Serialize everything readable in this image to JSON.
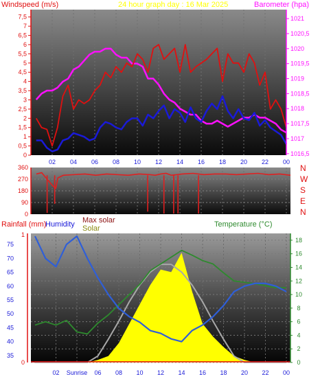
{
  "colors": {
    "wind_avg": "#1a1ad8",
    "wind_gust": "#e01010",
    "barometer": "#ff10ff",
    "wind_dir": "#e02020",
    "humidity": "#2f5fd8",
    "temperature": "#2e8a2e",
    "solar": "#ffff00",
    "max_solar": "#a8a8a8",
    "title": "#ffff00"
  },
  "chart_data": [
    {
      "type": "line",
      "title": "24 hour graph day : 16 Mar 2025",
      "left_axis_label": "Windspeed (m/s)",
      "right_axis_label": "Barometer (hpa)",
      "left_ticks": [
        "0",
        "0,5",
        "1",
        "1,5",
        "2",
        "2,5",
        "3",
        "3,5",
        "4",
        "4,5",
        "5",
        "5,5",
        "6",
        "6,5",
        "7",
        "7,5"
      ],
      "right_ticks": [
        "1016,5",
        "1017",
        "1017,5",
        "1018",
        "1018,5",
        "1019",
        "1019,5",
        "1020",
        "1020,5",
        "1021"
      ],
      "x_ticks": [
        "02",
        "04",
        "06",
        "08",
        "10",
        "12",
        "14",
        "16",
        "18",
        "20",
        "22",
        "00"
      ],
      "ylim_left": [
        0,
        7.9
      ],
      "ylim_right": [
        1016.45,
        1021.3
      ],
      "x_hours": [
        0.5,
        1,
        1.5,
        2,
        2.5,
        3,
        3.5,
        4,
        4.5,
        5,
        5.5,
        6,
        6.5,
        7,
        7.5,
        8,
        8.5,
        9,
        9.5,
        10,
        10.5,
        11,
        11.5,
        12,
        12.5,
        13,
        13.5,
        14,
        14.5,
        15,
        15.5,
        16,
        16.5,
        17,
        17.5,
        18,
        18.5,
        19,
        19.5,
        20,
        20.5,
        21,
        21.5,
        22,
        22.5,
        23,
        23.5,
        24
      ],
      "series": [
        {
          "key": "gust",
          "values": [
            2.0,
            1.5,
            1.4,
            0.5,
            1.5,
            3.2,
            3.8,
            2.5,
            3.0,
            2.8,
            3.0,
            3.5,
            3.8,
            4.5,
            4.2,
            4.8,
            4.5,
            5.0,
            4.8,
            5.5,
            5.2,
            4.5,
            5.8,
            6.0,
            5.2,
            5.5,
            5.8,
            4.5,
            6.0,
            4.5,
            4.8,
            5.0,
            5.2,
            5.5,
            5.8,
            4.0,
            5.5,
            5.0,
            5.0,
            4.5,
            5.5,
            5.0,
            3.8,
            4.5,
            2.5,
            3.0,
            2.5,
            1.5
          ]
        },
        {
          "key": "avg",
          "values": [
            0.8,
            0.8,
            0.4,
            0.2,
            0.3,
            0.8,
            0.9,
            1.2,
            1.1,
            1.0,
            0.8,
            0.9,
            1.5,
            1.8,
            1.7,
            1.5,
            1.4,
            1.8,
            2.0,
            2.0,
            1.6,
            2.2,
            2.0,
            2.4,
            2.7,
            2.0,
            2.5,
            2.3,
            1.8,
            2.6,
            2.0,
            1.8,
            2.4,
            2.8,
            2.5,
            3.2,
            2.4,
            2.0,
            2.5,
            2.0,
            1.9,
            2.3,
            1.6,
            1.9,
            1.5,
            1.3,
            1.1,
            0.6
          ]
        },
        {
          "key": "baro",
          "values": [
            1018.3,
            1018.5,
            1018.6,
            1018.6,
            1018.7,
            1018.9,
            1019.0,
            1019.3,
            1019.4,
            1019.6,
            1019.8,
            1019.9,
            1019.9,
            1020.0,
            1020.0,
            1019.8,
            1019.7,
            1019.7,
            1019.5,
            1019.5,
            1019.4,
            1019.0,
            1019.0,
            1018.8,
            1018.5,
            1018.3,
            1018.2,
            1018.0,
            1017.9,
            1017.8,
            1017.8,
            1017.6,
            1017.5,
            1017.5,
            1017.6,
            1017.5,
            1017.4,
            1017.5,
            1017.6,
            1017.7,
            1017.7,
            1017.8,
            1017.7,
            1017.7,
            1017.6,
            1017.5,
            1017.3,
            1017.2
          ]
        }
      ]
    },
    {
      "type": "line",
      "left_ticks": [
        "0",
        "90",
        "180",
        "270",
        "360"
      ],
      "right_labels": [
        "N",
        "W",
        "S",
        "E",
        "N"
      ],
      "x_ticks": [
        "02",
        "04",
        "06",
        "08",
        "10",
        "12",
        "14",
        "16",
        "18",
        "20",
        "22",
        "00"
      ],
      "ylim": [
        0,
        360
      ],
      "x_hours": [
        0.5,
        1,
        1.3,
        2,
        2.3,
        2.5,
        3,
        4,
        5,
        6,
        7,
        8,
        9,
        10,
        11,
        11.5,
        12,
        12.5,
        13,
        13.5,
        14,
        15,
        16,
        17,
        18,
        19,
        20,
        21,
        22,
        23,
        24
      ],
      "series": [
        {
          "key": "dir",
          "values": [
            310,
            320,
            290,
            220,
            200,
            280,
            300,
            305,
            310,
            300,
            310,
            305,
            300,
            310,
            305,
            300,
            310,
            315,
            300,
            305,
            310,
            315,
            305,
            310,
            310,
            305,
            310,
            315,
            305,
            310,
            300
          ]
        }
      ],
      "spikes": [
        {
          "hour": 1.5,
          "value": 10
        },
        {
          "hour": 2.2,
          "value": 80
        },
        {
          "hour": 10.8,
          "value": 20
        },
        {
          "hour": 12.3,
          "value": 5
        },
        {
          "hour": 13.2,
          "value": 5
        },
        {
          "hour": 13.6,
          "value": 5
        },
        {
          "hour": 15.5,
          "value": 5
        }
      ]
    },
    {
      "type": "line",
      "left_axis_label_1": "Rainfall (mm)",
      "left_axis_label_2": "Humidity",
      "max_solar_label": "Max solar",
      "solar_label": "Solar",
      "right_axis_label": "Temperature (°C)",
      "rain_ticks": [
        "0",
        "1"
      ],
      "humidity_ticks": [
        "35",
        "40",
        "45",
        "50",
        "55",
        "60",
        "65",
        "70",
        "75"
      ],
      "temp_ticks": [
        "0",
        "2",
        "4",
        "6",
        "8",
        "10",
        "12",
        "14",
        "16",
        "18"
      ],
      "x_ticks": [
        "02",
        "Sunrise",
        "06",
        "08",
        "10",
        "12",
        "14",
        "16",
        "18",
        "20",
        "22",
        "00"
      ],
      "hum_range": [
        32.5,
        79
      ],
      "temp_range": [
        0,
        19
      ],
      "x_hours": [
        0,
        1,
        2,
        3,
        4,
        5,
        6,
        7,
        8,
        9,
        10,
        11,
        12,
        13,
        14,
        15,
        16,
        17,
        18,
        19,
        20,
        21,
        22,
        23,
        24
      ],
      "series": [
        {
          "key": "humidity",
          "values": [
            78,
            70,
            67,
            75,
            78,
            70,
            63,
            57,
            52,
            49,
            47,
            44,
            43,
            41,
            40,
            44,
            46,
            49,
            53,
            58,
            60,
            61,
            61,
            60,
            58
          ]
        },
        {
          "key": "temperature",
          "values": [
            5.5,
            6,
            5.5,
            6.2,
            4.5,
            4.2,
            5.8,
            7,
            8.5,
            10,
            11.5,
            13.5,
            14.5,
            15.5,
            16.5,
            15.8,
            15,
            14.5,
            13.2,
            12,
            11.8,
            11.6,
            11.3,
            11,
            11
          ]
        },
        {
          "key": "solar",
          "values": [
            0,
            0,
            0,
            0,
            0,
            0,
            0.02,
            0.05,
            0.15,
            0.3,
            0.45,
            0.6,
            0.72,
            0.7,
            0.85,
            0.55,
            0.3,
            0.2,
            0.12,
            0.05,
            0.02,
            0,
            0,
            0,
            0
          ]
        },
        {
          "key": "max_solar",
          "values": [
            0,
            0,
            0,
            0,
            0,
            0,
            0.05,
            0.18,
            0.32,
            0.47,
            0.6,
            0.7,
            0.76,
            0.76,
            0.7,
            0.6,
            0.47,
            0.32,
            0.18,
            0.05,
            0,
            0,
            0,
            0,
            0
          ]
        }
      ]
    }
  ]
}
